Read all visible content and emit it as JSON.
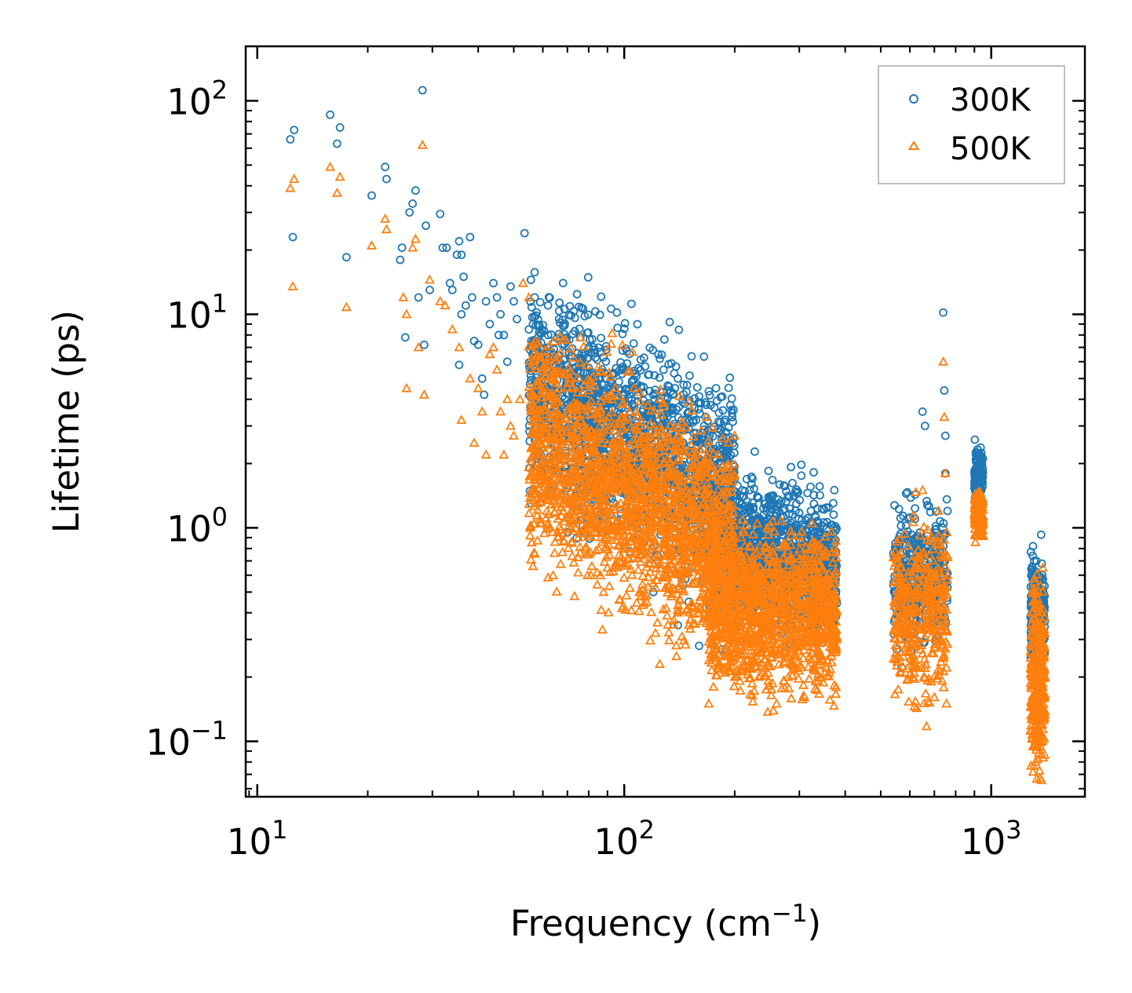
{
  "chart_data": {
    "type": "scatter",
    "title": "",
    "xlabel": {
      "base": "Frequency (cm",
      "sup": "−1",
      "tail": ")"
    },
    "ylabel": "Lifetime (ps)",
    "xscale": "log",
    "yscale": "log",
    "xlim": [
      9.3,
      1800
    ],
    "ylim": [
      0.055,
      180
    ],
    "xticks": [
      {
        "value": 10,
        "base": "10",
        "exp": "1"
      },
      {
        "value": 100,
        "base": "10",
        "exp": "2"
      },
      {
        "value": 1000,
        "base": "10",
        "exp": "3"
      }
    ],
    "yticks": [
      {
        "value": 0.1,
        "base": "10",
        "exp": "−1"
      },
      {
        "value": 1,
        "base": "10",
        "exp": "0"
      },
      {
        "value": 10,
        "base": "10",
        "exp": "1"
      },
      {
        "value": 100,
        "base": "10",
        "exp": "2"
      }
    ],
    "legend": {
      "position": "top-right"
    },
    "series": [
      {
        "name": "300K",
        "marker": "circle",
        "color": "#1f77b4",
        "points": [
          [
            12.3,
            66
          ],
          [
            12.6,
            73
          ],
          [
            12.5,
            23
          ],
          [
            15.8,
            86
          ],
          [
            16.5,
            63
          ],
          [
            16.8,
            75
          ],
          [
            17.5,
            18.5
          ],
          [
            20.5,
            36
          ],
          [
            22.3,
            49
          ],
          [
            22.5,
            43
          ],
          [
            24.5,
            18
          ],
          [
            24.8,
            20.5
          ],
          [
            25.3,
            7.8
          ],
          [
            26,
            30
          ],
          [
            26.5,
            33
          ],
          [
            27,
            38
          ],
          [
            28.2,
            112
          ],
          [
            28.8,
            26
          ],
          [
            27.5,
            12
          ],
          [
            28.5,
            7.2
          ],
          [
            29.5,
            13
          ],
          [
            31.5,
            29.5
          ],
          [
            32,
            20.5
          ],
          [
            32.8,
            20.5
          ],
          [
            33.5,
            14
          ],
          [
            34,
            13
          ],
          [
            35,
            19
          ],
          [
            35.5,
            22
          ],
          [
            36,
            19
          ],
          [
            36.5,
            15
          ],
          [
            37,
            11
          ],
          [
            38,
            23
          ],
          [
            35.5,
            5.8
          ],
          [
            36,
            10
          ],
          [
            38.5,
            12
          ],
          [
            39,
            7.5
          ],
          [
            40,
            7.2
          ],
          [
            41,
            5
          ],
          [
            41.5,
            4.2
          ],
          [
            42,
            11.5
          ],
          [
            43,
            9
          ],
          [
            44,
            14
          ],
          [
            45,
            12
          ],
          [
            45.5,
            8
          ],
          [
            46,
            10
          ],
          [
            47,
            8
          ],
          [
            48,
            6
          ],
          [
            49,
            13.5
          ],
          [
            50,
            11.5
          ],
          [
            51,
            9.5
          ],
          [
            53.5,
            24
          ],
          [
            55,
            8.5
          ],
          [
            56,
            7
          ],
          [
            57,
            12
          ],
          [
            58,
            6
          ],
          [
            60,
            5.5
          ],
          [
            62,
            8
          ],
          [
            64,
            6.5
          ],
          [
            66,
            6
          ],
          [
            68,
            5.5
          ],
          [
            72,
            4.8
          ],
          [
            75,
            4
          ],
          [
            78,
            9.8
          ],
          [
            80,
            7
          ],
          [
            82,
            3.5
          ],
          [
            85,
            5
          ],
          [
            90,
            4.5
          ],
          [
            95,
            4
          ],
          [
            100,
            4.2
          ],
          [
            105,
            3.8
          ],
          [
            112,
            3.5
          ],
          [
            120,
            4.2
          ],
          [
            125,
            6.2
          ],
          [
            128,
            5.5
          ],
          [
            132,
            3
          ],
          [
            140,
            5
          ],
          [
            150,
            3.5
          ],
          [
            160,
            2.5
          ],
          [
            170,
            2.2
          ],
          [
            180,
            2
          ],
          [
            190,
            2.3
          ],
          [
            200,
            1.7
          ],
          [
            210,
            1.5
          ],
          [
            220,
            1.2
          ],
          [
            230,
            1.1
          ],
          [
            240,
            1.15
          ],
          [
            250,
            1.05
          ],
          [
            265,
            1
          ],
          [
            280,
            0.9
          ],
          [
            300,
            0.8
          ],
          [
            320,
            0.7
          ],
          [
            340,
            0.62
          ],
          [
            355,
            0.58
          ],
          [
            370,
            0.52
          ],
          [
            120,
            0.5
          ],
          [
            140,
            0.35
          ],
          [
            150,
            0.45
          ],
          [
            160,
            0.28
          ],
          [
            185,
            0.27
          ],
          [
            190,
            0.32
          ],
          [
            600,
            0.75
          ],
          [
            620,
            1.1
          ],
          [
            650,
            3.5
          ],
          [
            660,
            3
          ],
          [
            740,
            10.2
          ],
          [
            745,
            4.4
          ],
          [
            750,
            2.7
          ],
          [
            750,
            1.8
          ],
          [
            760,
            1.2
          ],
          [
            920,
            2.2
          ],
          [
            930,
            1.9
          ],
          [
            940,
            1.5
          ],
          [
            1300,
            0.82
          ],
          [
            1310,
            0.7
          ],
          [
            1320,
            0.55
          ],
          [
            1360,
            0.5
          ],
          [
            1300,
            0.3
          ],
          [
            1330,
            0.4
          ]
        ]
      },
      {
        "name": "500K",
        "marker": "triangle",
        "color": "#ff7f0e",
        "points": [
          [
            12.3,
            39
          ],
          [
            12.6,
            43
          ],
          [
            12.5,
            13.5
          ],
          [
            15.8,
            49
          ],
          [
            16.5,
            37
          ],
          [
            16.8,
            44
          ],
          [
            17.5,
            10.8
          ],
          [
            20.5,
            21
          ],
          [
            22.3,
            28
          ],
          [
            22.5,
            25
          ],
          [
            25.5,
            4.5
          ],
          [
            26.5,
            20.5
          ],
          [
            27,
            22.5
          ],
          [
            25,
            12
          ],
          [
            25.5,
            10
          ],
          [
            28.2,
            62
          ],
          [
            28.5,
            4.2
          ],
          [
            27.5,
            7
          ],
          [
            29.5,
            14.5
          ],
          [
            31.5,
            11.5
          ],
          [
            32.5,
            11
          ],
          [
            34,
            8.5
          ],
          [
            35.5,
            7
          ],
          [
            36,
            3.2
          ],
          [
            38,
            5
          ],
          [
            39,
            2.5
          ],
          [
            40,
            4.5
          ],
          [
            41,
            3.5
          ],
          [
            42,
            2.2
          ],
          [
            43,
            6.5
          ],
          [
            44,
            7
          ],
          [
            45,
            5.5
          ],
          [
            46,
            3.5
          ],
          [
            47,
            2.2
          ],
          [
            48,
            4
          ],
          [
            49,
            3
          ],
          [
            50,
            2.7
          ],
          [
            52,
            4
          ],
          [
            53,
            14
          ],
          [
            55,
            12
          ],
          [
            57,
            1.5
          ],
          [
            58,
            1.3
          ],
          [
            60,
            2
          ],
          [
            62,
            1.8
          ],
          [
            64,
            1.4
          ],
          [
            66,
            1.1
          ],
          [
            68,
            1.2
          ],
          [
            72,
            0.85
          ],
          [
            75,
            0.9
          ],
          [
            80,
            0.75
          ],
          [
            90,
            0.9
          ],
          [
            100,
            0.8
          ],
          [
            105,
            0.6
          ],
          [
            110,
            0.5
          ],
          [
            115,
            0.45
          ],
          [
            120,
            0.55
          ],
          [
            125,
            0.23
          ],
          [
            130,
            0.42
          ],
          [
            140,
            0.4
          ],
          [
            150,
            0.35
          ],
          [
            160,
            0.4
          ],
          [
            170,
            0.15
          ],
          [
            175,
            0.18
          ],
          [
            180,
            0.22
          ],
          [
            190,
            0.25
          ],
          [
            200,
            0.2
          ],
          [
            210,
            0.3
          ],
          [
            220,
            0.22
          ],
          [
            240,
            0.3
          ],
          [
            260,
            0.15
          ],
          [
            280,
            0.2
          ],
          [
            300,
            0.28
          ],
          [
            320,
            0.25
          ],
          [
            340,
            0.3
          ],
          [
            360,
            0.32
          ],
          [
            370,
            0.3
          ],
          [
            600,
            0.5
          ],
          [
            610,
            0.35
          ],
          [
            620,
            0.28
          ],
          [
            650,
            1.5
          ],
          [
            660,
            0.22
          ],
          [
            680,
            0.6
          ],
          [
            740,
            6
          ],
          [
            745,
            3.3
          ],
          [
            750,
            1.8
          ],
          [
            755,
            0.15
          ],
          [
            760,
            0.6
          ],
          [
            920,
            1.4
          ],
          [
            930,
            1
          ],
          [
            1300,
            0.45
          ],
          [
            1310,
            0.3
          ],
          [
            1320,
            0.08
          ],
          [
            1340,
            0.1
          ],
          [
            1360,
            0.3
          ]
        ]
      }
    ],
    "clusters": [
      {
        "x": [
          55,
          200
        ],
        "y_center_start": 4.5,
        "y_center_end": 1.5,
        "spread": 0.5,
        "series": "300K",
        "count": 1700
      },
      {
        "x": [
          55,
          200
        ],
        "y_center_start": 2.6,
        "y_center_end": 0.8,
        "spread": 0.55,
        "series": "500K",
        "count": 1900
      },
      {
        "x": [
          170,
          380
        ],
        "y_center_start": 0.85,
        "y_center_end": 0.65,
        "spread": 0.35,
        "series": "300K",
        "count": 1300
      },
      {
        "x": [
          170,
          380
        ],
        "y_center_start": 0.45,
        "y_center_end": 0.38,
        "spread": 0.4,
        "series": "500K",
        "count": 1300
      },
      {
        "x": [
          540,
          760
        ],
        "y_center_start": 0.6,
        "y_center_end": 0.6,
        "spread": 0.35,
        "series": "300K",
        "count": 380
      },
      {
        "x": [
          540,
          760
        ],
        "y_center_start": 0.42,
        "y_center_end": 0.42,
        "spread": 0.45,
        "series": "500K",
        "count": 380
      },
      {
        "x": [
          900,
          950
        ],
        "y_center_start": 1.8,
        "y_center_end": 1.8,
        "spread": 0.12,
        "series": "300K",
        "count": 160
      },
      {
        "x": [
          900,
          950
        ],
        "y_center_start": 1.15,
        "y_center_end": 1.15,
        "spread": 0.12,
        "series": "500K",
        "count": 160
      },
      {
        "x": [
          1280,
          1400
        ],
        "y_center_start": 0.36,
        "y_center_end": 0.36,
        "spread": 0.3,
        "series": "300K",
        "count": 280
      },
      {
        "x": [
          1280,
          1400
        ],
        "y_center_start": 0.2,
        "y_center_end": 0.2,
        "spread": 0.45,
        "series": "500K",
        "count": 320
      }
    ]
  }
}
